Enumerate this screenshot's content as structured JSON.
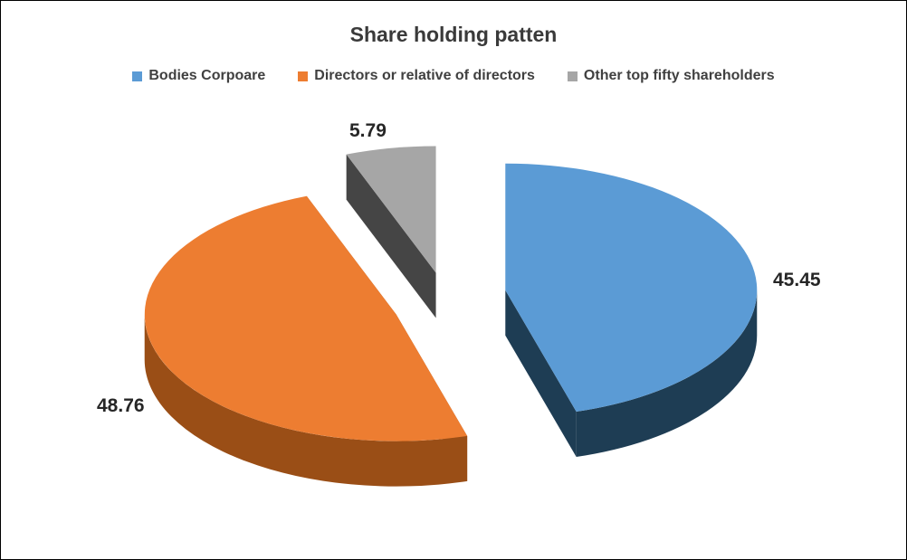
{
  "chart": {
    "title": "Share holding patten",
    "legend": [
      {
        "label": "Bodies Corpoare",
        "color": "#5B9BD5"
      },
      {
        "label": "Directors or relative of directors",
        "color": "#ED7D31"
      },
      {
        "label": "Other top fifty shareholders",
        "color": "#A6A6A6"
      }
    ]
  },
  "chart_data": {
    "type": "pie",
    "style": "3d-exploded",
    "title": "Share holding patten",
    "categories": [
      "Bodies Corpoare",
      "Directors or relative of directors",
      "Other top fifty shareholders"
    ],
    "values": [
      45.45,
      48.76,
      5.79
    ],
    "labels_text": [
      "45.45",
      "48.76",
      "5.79"
    ],
    "colors": [
      "#5B9BD5",
      "#ED7D31",
      "#A6A6A6"
    ],
    "side_colors": [
      "#1E3D54",
      "#9A4E16",
      "#454545"
    ],
    "start_angle_deg": 0,
    "direction": "clockwise",
    "legend_position": "top",
    "background": "#FFFFFF"
  }
}
